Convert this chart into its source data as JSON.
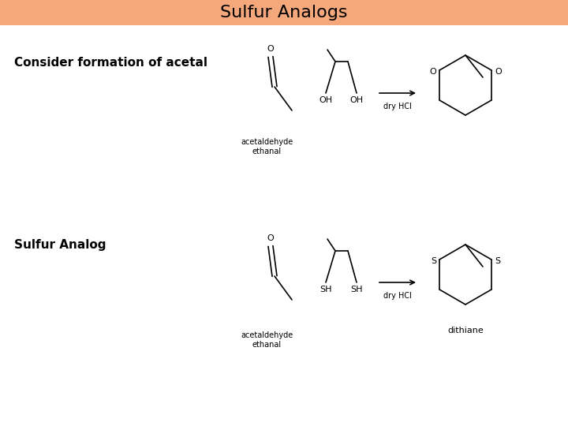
{
  "title": "Sulfur Analogs",
  "title_bg_color": "#F4A87C",
  "title_font_size": 16,
  "bg_color": "#FFFFFF",
  "label1": "Consider formation of acetal",
  "label2": "Sulfur Analog",
  "label_font_size": 11,
  "label_font_weight": "bold",
  "line_color": "#000000",
  "line_width": 1.2,
  "small_font": 7,
  "medium_font": 8,
  "arrow_label": "dry HCl"
}
